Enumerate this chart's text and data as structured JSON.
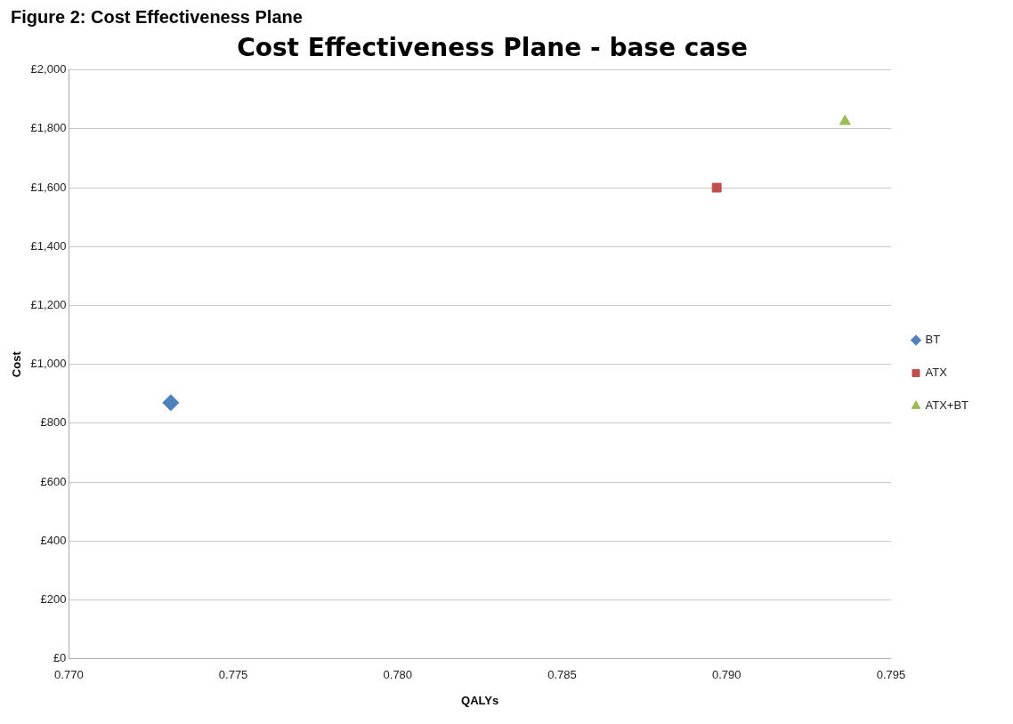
{
  "chart_data": {
    "type": "scatter",
    "title": "Cost Effectiveness Plane - base case",
    "xlabel": "QALYs",
    "ylabel": "Cost",
    "annotations": [
      "Figure 2: Cost Effectiveness Plane"
    ],
    "series": [
      {
        "name": "BT",
        "color": "#4f81bd",
        "marker": "diamond",
        "x": [
          0.7731
        ],
        "values": [
          870
        ]
      },
      {
        "name": "ATX",
        "color": "#c0504d",
        "marker": "square",
        "x": [
          0.7897
        ],
        "values": [
          1600
        ]
      },
      {
        "name": "ATX+BT",
        "color": "#9bbb59",
        "marker": "triangle",
        "x": [
          0.7936
        ],
        "values": [
          1825
        ]
      }
    ],
    "xlim": [
      0.77,
      0.795
    ],
    "xticks": [
      {
        "value": 0.77,
        "label": "0.770"
      },
      {
        "value": 0.775,
        "label": "0.775"
      },
      {
        "value": 0.78,
        "label": "0.780"
      },
      {
        "value": 0.785,
        "label": "0.785"
      },
      {
        "value": 0.79,
        "label": "0.790"
      },
      {
        "value": 0.795,
        "label": "0.795"
      }
    ],
    "ylim": [
      0,
      2000
    ],
    "yticks": [
      {
        "value": 0,
        "label": "£0"
      },
      {
        "value": 200,
        "label": "£200"
      },
      {
        "value": 400,
        "label": "£400"
      },
      {
        "value": 600,
        "label": "£600"
      },
      {
        "value": 800,
        "label": "£800"
      },
      {
        "value": 1000,
        "label": "£1,000"
      },
      {
        "value": 1200,
        "label": "£1,200"
      },
      {
        "value": 1400,
        "label": "£1,400"
      },
      {
        "value": 1600,
        "label": "£1,600"
      },
      {
        "value": 1800,
        "label": "£1,800"
      },
      {
        "value": 2000,
        "label": "£2,000"
      }
    ],
    "grid": "y",
    "legend": "right"
  }
}
